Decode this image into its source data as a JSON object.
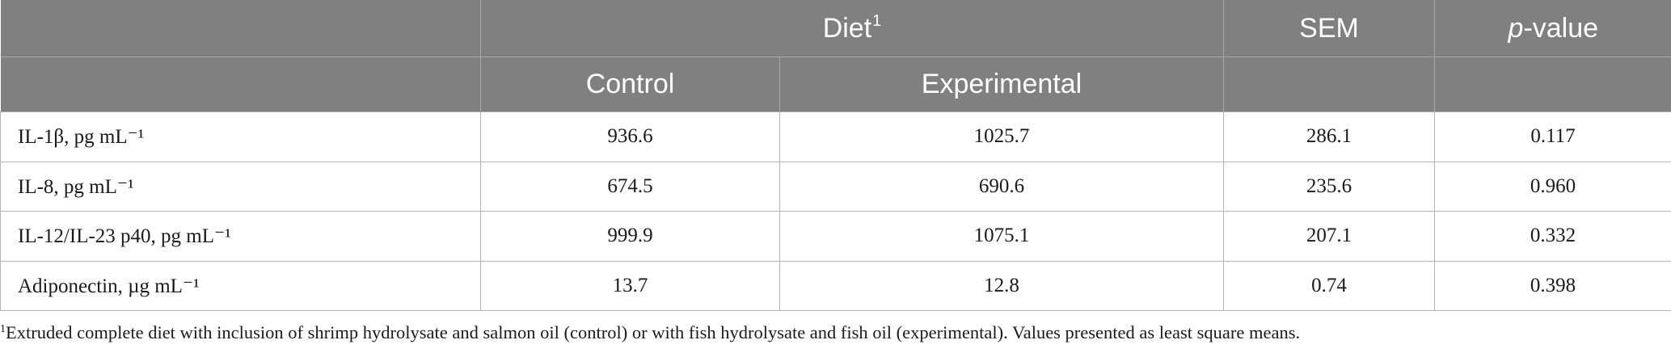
{
  "table": {
    "header_top": {
      "diet_label": "Diet",
      "diet_footnote_marker": "1",
      "sem_label": "SEM",
      "pvalue_italic": "p",
      "pvalue_rest": "-value"
    },
    "header_sub": {
      "control_label": "Control",
      "experimental_label": "Experimental"
    },
    "rows": [
      {
        "label": "IL-1β, pg mL⁻¹",
        "control": "936.6",
        "experimental": "1025.7",
        "sem": "286.1",
        "p": "0.117"
      },
      {
        "label": "IL-8, pg mL⁻¹",
        "control": "674.5",
        "experimental": "690.6",
        "sem": "235.6",
        "p": "0.960"
      },
      {
        "label": "IL-12/IL-23 p40, pg mL⁻¹",
        "control": "999.9",
        "experimental": "1075.1",
        "sem": "207.1",
        "p": "0.332"
      },
      {
        "label": "Adiponectin, µg mL⁻¹",
        "control": "13.7",
        "experimental": "12.8",
        "sem": "0.74",
        "p": "0.398"
      }
    ]
  },
  "footnote": {
    "marker": "1",
    "text": "Extruded complete diet with inclusion of shrimp hydrolysate and salmon oil (control) or with fish hydrolysate and fish oil (experimental). Values presented as least square means."
  },
  "colors": {
    "header_background": "#808080",
    "header_text": "#ffffff",
    "grid_line": "#b4b4b4"
  }
}
